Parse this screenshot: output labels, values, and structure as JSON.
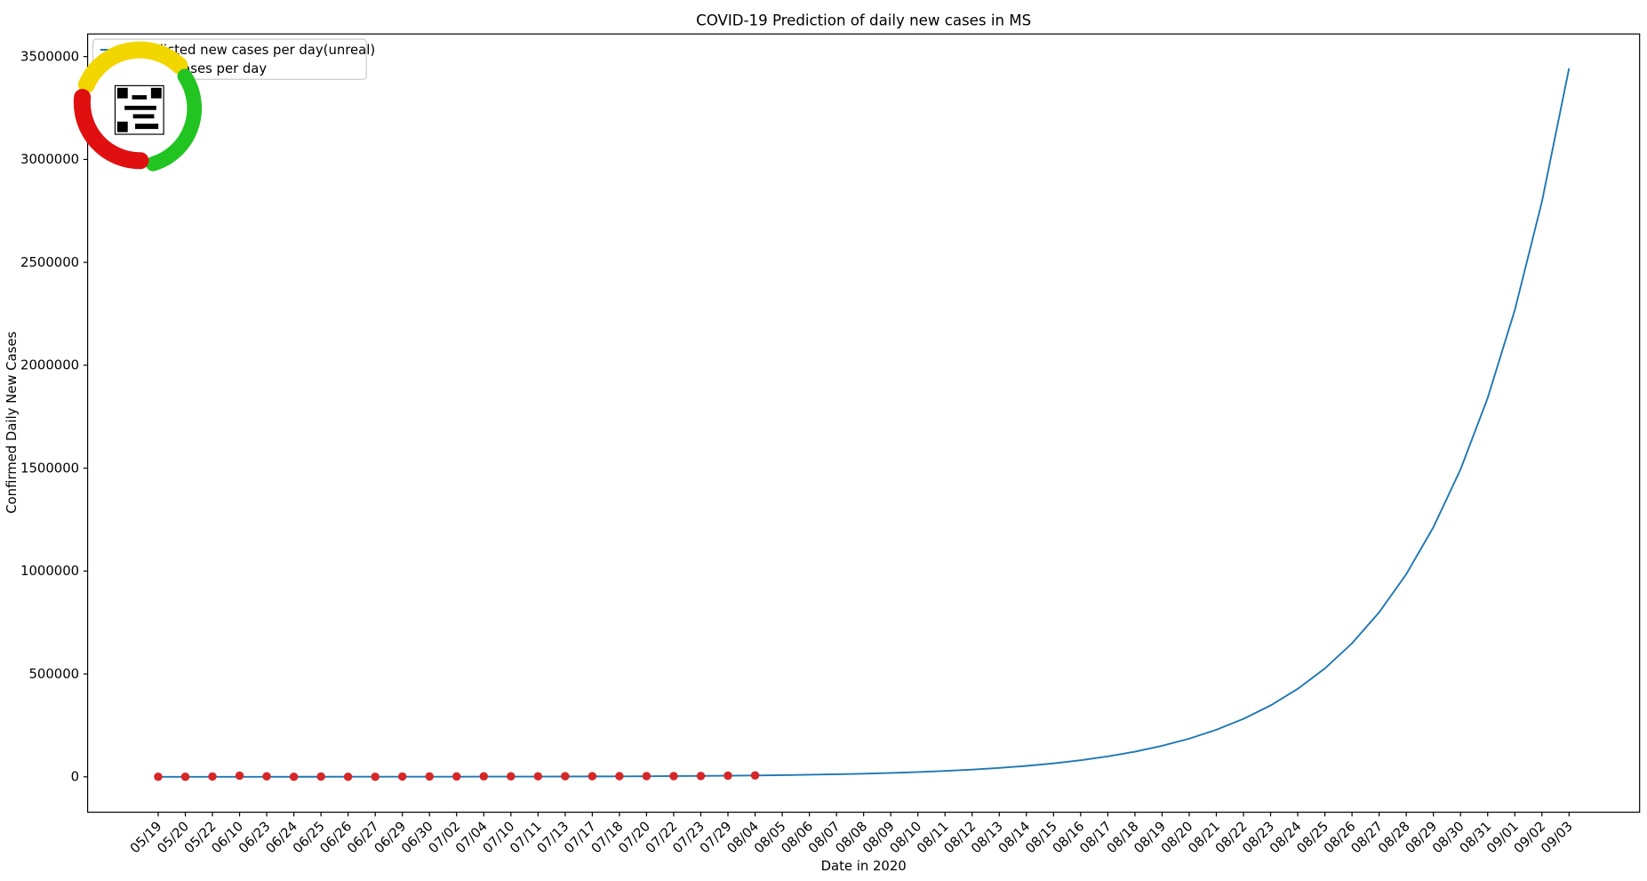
{
  "chart_data": {
    "type": "line",
    "title": "COVID-19 Prediction of daily new cases in MS",
    "x_label": "Date in 2020",
    "y_label": "Confirmed Daily New Cases",
    "categories": [
      "05/19",
      "05/20",
      "05/22",
      "06/10",
      "06/23",
      "06/24",
      "06/25",
      "06/26",
      "06/27",
      "06/29",
      "06/30",
      "07/02",
      "07/04",
      "07/10",
      "07/11",
      "07/13",
      "07/17",
      "07/18",
      "07/20",
      "07/22",
      "07/23",
      "07/29",
      "08/04",
      "08/05",
      "08/06",
      "08/07",
      "08/08",
      "08/09",
      "08/10",
      "08/11",
      "08/12",
      "08/13",
      "08/14",
      "08/15",
      "08/16",
      "08/17",
      "08/18",
      "08/19",
      "08/20",
      "08/21",
      "08/22",
      "08/23",
      "08/24",
      "08/25",
      "08/26",
      "08/27",
      "08/28",
      "08/29",
      "08/30",
      "08/31",
      "09/01",
      "09/02",
      "09/03"
    ],
    "series": [
      {
        "name": "Predicted new cases per day(unreal)",
        "color": "#1f77b4",
        "style": "line",
        "values": [
          67,
          82,
          101,
          125,
          154,
          190,
          234,
          288,
          355,
          438,
          540,
          665,
          820,
          1010,
          1240,
          1530,
          1880,
          2320,
          2860,
          3520,
          4340,
          5350,
          6600,
          8100,
          10000,
          12300,
          15200,
          18700,
          23000,
          28400,
          35000,
          43100,
          53100,
          65400,
          80500,
          99200,
          122200,
          150600,
          185500,
          228600,
          281600,
          346900,
          427400,
          526500,
          648700,
          799200,
          984600,
          1213000,
          1494000,
          1841000,
          2268000,
          2795000,
          3443000
        ]
      },
      {
        "name": "Real cases per day",
        "color": "#d62728",
        "style": "scatter",
        "values": [
          200,
          100,
          1500,
          5500,
          2500,
          300,
          1200,
          200,
          300,
          1500,
          1800,
          2000,
          2200,
          2400,
          2600,
          2800,
          3000,
          3200,
          3300,
          3500,
          3800,
          5500,
          6800,
          null,
          null,
          null,
          null,
          null,
          null,
          null,
          null,
          null,
          null,
          null,
          null,
          null,
          null,
          null,
          null,
          null,
          null,
          null,
          null,
          null,
          null,
          null,
          null,
          null,
          null,
          null,
          null,
          null,
          null
        ]
      }
    ],
    "xlim": [
      -2.6,
      54.6
    ],
    "ylim": [
      -172000,
      3610000
    ],
    "yticks": [
      0,
      500000,
      1000000,
      1500000,
      2000000,
      2500000,
      3000000,
      3500000
    ],
    "legend": "upper left"
  }
}
